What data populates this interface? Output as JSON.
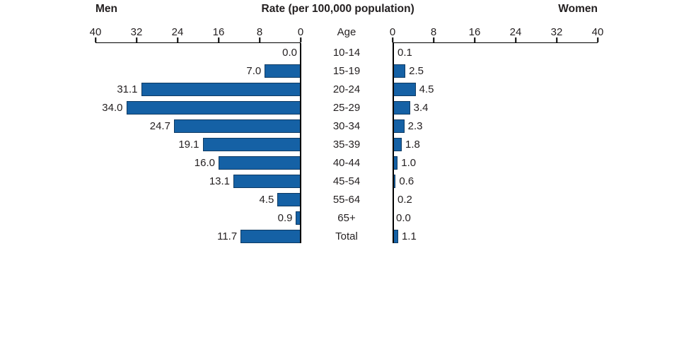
{
  "header": {
    "left": "Men",
    "title": "Rate (per 100,000 population)",
    "right": "Women"
  },
  "axis": {
    "age_label": "Age",
    "men_ticks": [
      40,
      32,
      24,
      16,
      8,
      0
    ],
    "women_ticks": [
      0,
      8,
      16,
      24,
      32,
      40
    ],
    "max": 40
  },
  "chart_data": {
    "type": "bar",
    "layout": "population-pyramid",
    "title": "Rate (per 100,000 population)",
    "categories": [
      "10-14",
      "15-19",
      "20-24",
      "25-29",
      "30-34",
      "35-39",
      "40-44",
      "45-54",
      "55-64",
      "65+",
      "Total"
    ],
    "series": [
      {
        "name": "Men",
        "values": [
          0.0,
          7.0,
          31.1,
          34.0,
          24.7,
          19.1,
          16.0,
          13.1,
          4.5,
          0.9,
          11.7
        ]
      },
      {
        "name": "Women",
        "values": [
          0.1,
          2.5,
          4.5,
          3.4,
          2.3,
          1.8,
          1.0,
          0.6,
          0.2,
          0.0,
          1.1
        ]
      }
    ],
    "xlim": [
      0,
      40
    ],
    "bar_color": "#1561a5",
    "value_format": "one-decimal",
    "grid": false,
    "legend": "none"
  }
}
